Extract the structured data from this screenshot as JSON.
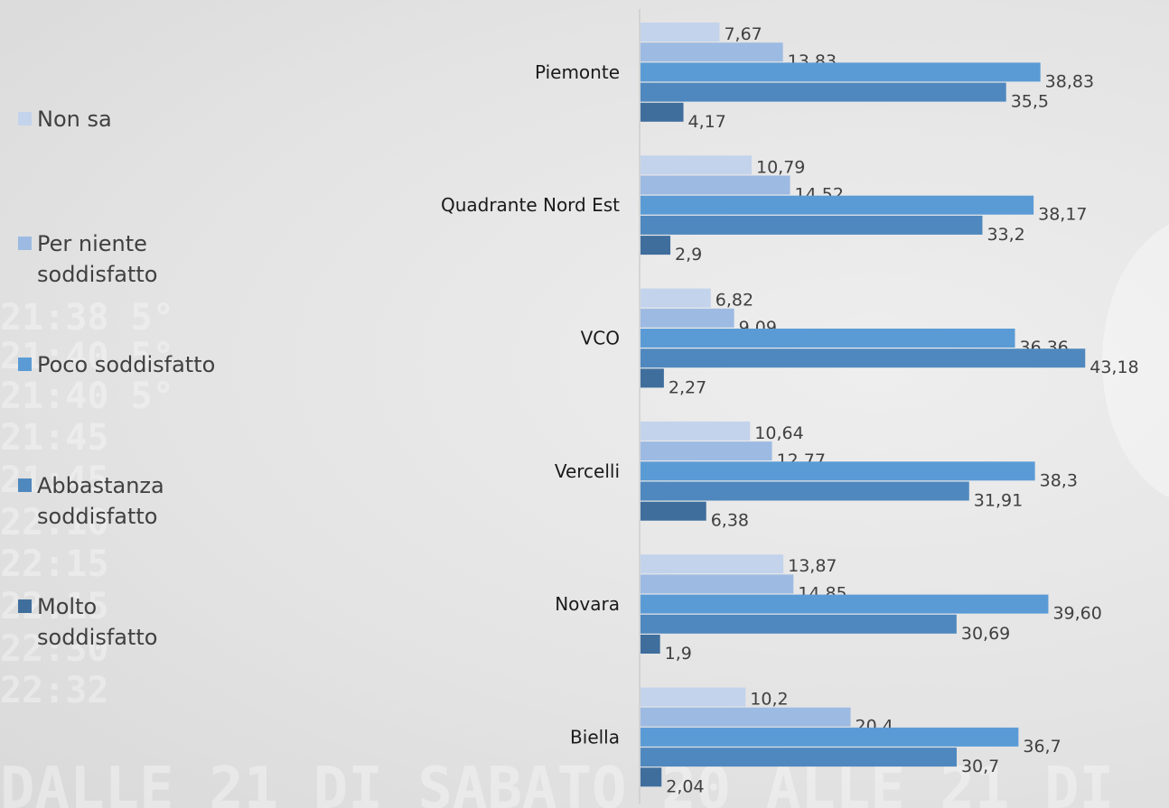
{
  "chart_data": {
    "type": "bar",
    "orientation": "horizontal",
    "categories": [
      "Piemonte",
      "Quadrante Nord Est",
      "VCO",
      "Vercelli",
      "Novara",
      "Biella"
    ],
    "series": [
      {
        "name": "Non sa",
        "color": "#c3d3ec",
        "values": [
          7.67,
          10.79,
          6.82,
          10.64,
          13.87,
          10.2
        ],
        "labels": [
          "7,67",
          "10,79",
          "6,82",
          "10,64",
          "13,87",
          "10,2"
        ]
      },
      {
        "name": "Per niente soddisfatto",
        "color": "#9dbae2",
        "values": [
          13.83,
          14.52,
          9.09,
          12.77,
          14.85,
          20.4
        ],
        "labels": [
          "13,83",
          "14,52",
          "9,09",
          "12,77",
          "14,85",
          "20,4"
        ]
      },
      {
        "name": "Poco soddisfatto",
        "color": "#5b9bd5",
        "values": [
          38.83,
          38.17,
          36.36,
          38.3,
          39.6,
          36.7
        ],
        "labels": [
          "38,83",
          "38,17",
          "36,36",
          "38,3",
          "39,60",
          "36,7"
        ]
      },
      {
        "name": "Abbastanza soddisfatto",
        "color": "#4f88be",
        "values": [
          35.5,
          33.2,
          43.18,
          31.91,
          30.69,
          30.7
        ],
        "labels": [
          "35,5",
          "33,2",
          "43,18",
          "31,91",
          "30,69",
          "30,7"
        ]
      },
      {
        "name": "Molto soddisfatto",
        "color": "#3f6e9d",
        "values": [
          4.17,
          2.9,
          2.27,
          6.38,
          1.9,
          2.04
        ],
        "labels": [
          "4,17",
          "2,9",
          "2,27",
          "6,38",
          "1,9",
          "2,04"
        ]
      }
    ],
    "xlim": [
      0,
      45
    ],
    "legend_position": "left",
    "grid": false
  }
}
